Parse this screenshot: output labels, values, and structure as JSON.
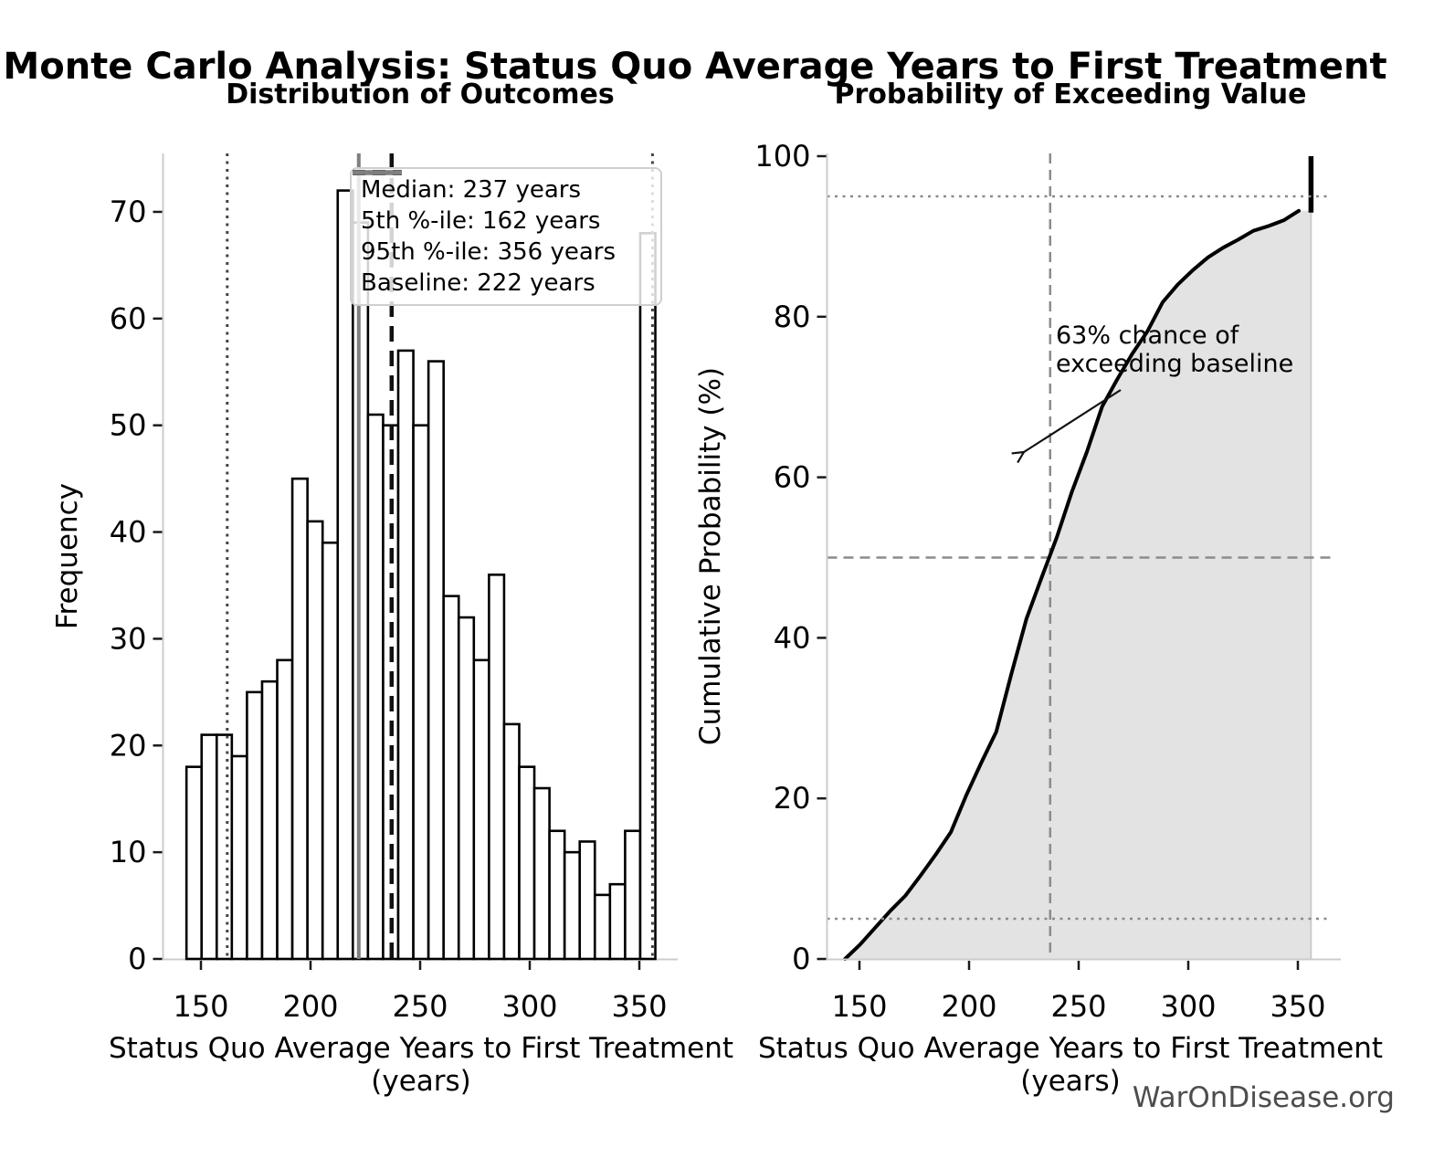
{
  "title": "Monte Carlo Analysis: Status Quo Average Years to First Treatment",
  "watermark": "WarOnDisease.org",
  "chart_data": [
    {
      "type": "bar",
      "subtype": "histogram",
      "title": "Distribution of Outcomes",
      "xlabel": "Status Quo Average Years to First Treatment (years)",
      "ylabel": "Frequency",
      "n_total": 1000,
      "bin_start": 143.4,
      "bin_width": 6.9,
      "counts": [
        18,
        21,
        21,
        19,
        25,
        26,
        28,
        45,
        41,
        39,
        72,
        69,
        51,
        50,
        57,
        50,
        56,
        34,
        32,
        28,
        36,
        22,
        18,
        16,
        12,
        10,
        11,
        6,
        7,
        12,
        68
      ],
      "x_ticks": [
        150,
        200,
        250,
        300,
        350
      ],
      "y_ticks": [
        0,
        10,
        20,
        30,
        40,
        50,
        60,
        70
      ],
      "xlim": [
        132.5,
        367.5
      ],
      "ylim": [
        0,
        75.5
      ],
      "grid": false,
      "bar_fill": "#ffffff",
      "bar_edge": "#000000",
      "markers": [
        {
          "name": "median",
          "value": 237,
          "style": "dashed-black"
        },
        {
          "name": "p5",
          "value": 162,
          "style": "dotted-dark"
        },
        {
          "name": "p95",
          "value": 356,
          "style": "dotted-dark"
        },
        {
          "name": "baseline",
          "value": 222,
          "style": "solid-gray"
        }
      ],
      "legend": {
        "position": "upper-right",
        "items": [
          {
            "label": "Median: 237 years",
            "style": "dashed-black"
          },
          {
            "label": "5th %-ile: 162 years",
            "style": "dotted-dark"
          },
          {
            "label": "95th %-ile: 356 years",
            "style": "dotted-dark"
          },
          {
            "label": "Baseline: 222 years",
            "style": "solid-gray"
          }
        ]
      }
    },
    {
      "type": "area",
      "subtype": "cumulative-distribution",
      "title": "Probability of Exceeding Value",
      "xlabel": "Status Quo Average Years to First Treatment (years)",
      "ylabel": "Cumulative Probability (%)",
      "x_ticks": [
        150,
        200,
        250,
        300,
        350
      ],
      "y_ticks": [
        0,
        20,
        40,
        60,
        80,
        100
      ],
      "xlim": [
        132.5,
        367.5
      ],
      "ylim": [
        0,
        100
      ],
      "grid": false,
      "line_color": "#000000",
      "fill_color": "#e3e3e3",
      "cap_value": 356,
      "cdf_points": [
        [
          143.4,
          0
        ],
        [
          150.3,
          1.8
        ],
        [
          157.2,
          3.9
        ],
        [
          164.1,
          6.0
        ],
        [
          171.0,
          7.9
        ],
        [
          177.9,
          10.4
        ],
        [
          184.8,
          13.0
        ],
        [
          191.7,
          15.8
        ],
        [
          198.6,
          20.3
        ],
        [
          205.5,
          24.4
        ],
        [
          212.4,
          28.3
        ],
        [
          219.3,
          35.5
        ],
        [
          226.2,
          42.4
        ],
        [
          233.1,
          47.5
        ],
        [
          240.0,
          52.5
        ],
        [
          246.9,
          58.2
        ],
        [
          253.8,
          63.2
        ],
        [
          260.7,
          68.8
        ],
        [
          267.6,
          72.2
        ],
        [
          274.5,
          75.4
        ],
        [
          281.4,
          78.2
        ],
        [
          288.3,
          81.8
        ],
        [
          295.2,
          84.0
        ],
        [
          302.1,
          85.8
        ],
        [
          309.0,
          87.4
        ],
        [
          315.9,
          88.6
        ],
        [
          322.8,
          89.6
        ],
        [
          329.7,
          90.7
        ],
        [
          336.6,
          91.3
        ],
        [
          343.5,
          92.0
        ],
        [
          350.4,
          93.2
        ],
        [
          356,
          93.2
        ],
        [
          356,
          100
        ]
      ],
      "guides": {
        "h_dotted": [
          5,
          95
        ],
        "h_dashed": [
          50
        ],
        "v_dashed": [
          237
        ]
      },
      "annotation": {
        "line1": "63% chance of",
        "line2": "exceeding baseline",
        "value_pct": 63
      }
    }
  ]
}
